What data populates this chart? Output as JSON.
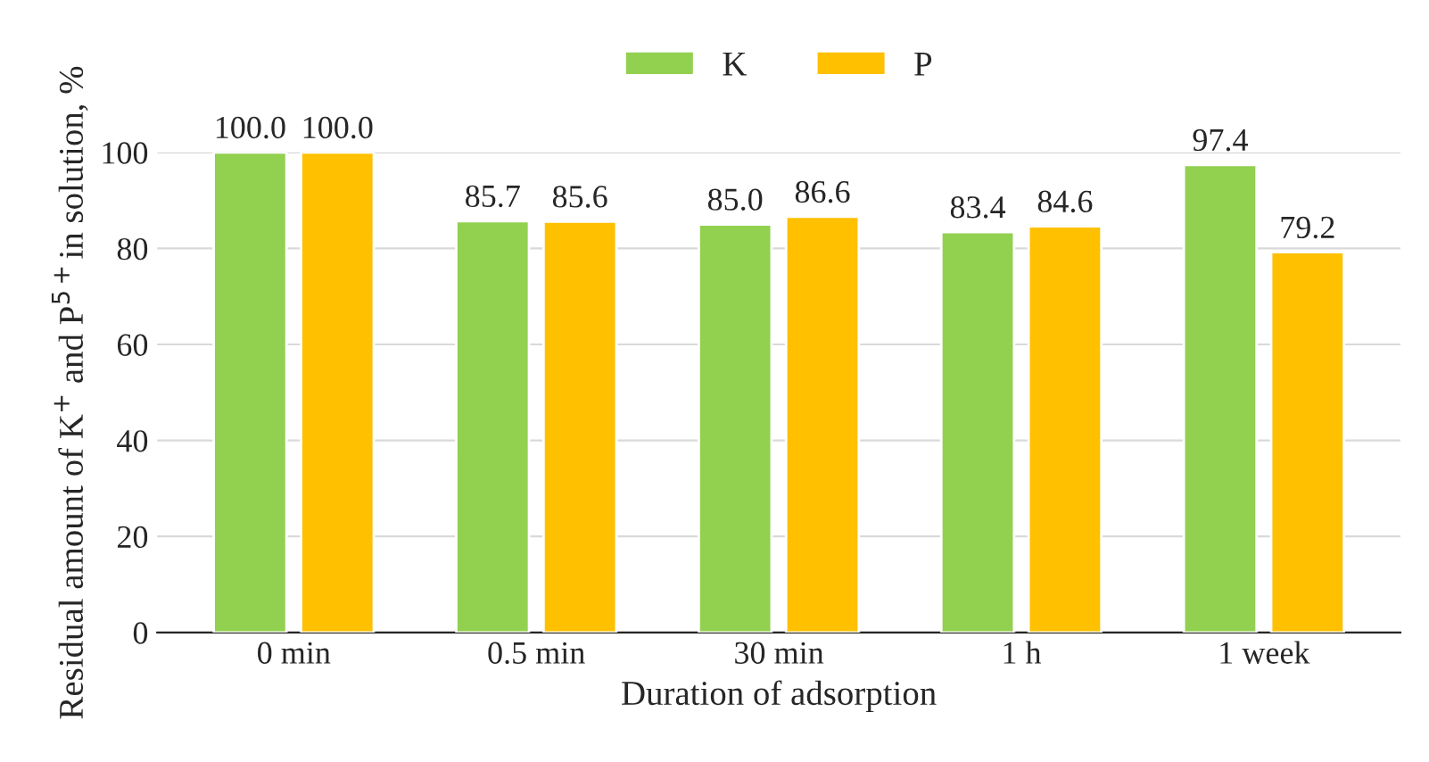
{
  "chart_data": {
    "type": "bar",
    "xlabel": "Duration of adsorption",
    "ylabel": "Residual amount of K$^{+}$ and P$^{5+}$in solution, %",
    "categories": [
      "0 min",
      "0.5 min",
      "30 min",
      "1 h",
      "1 week"
    ],
    "series": [
      {
        "name": "K",
        "color": "#92d050",
        "values": [
          100.0,
          85.7,
          85.0,
          83.4,
          97.4
        ],
        "value_labels": [
          "100.0",
          "85.7",
          "85.0",
          "83.4",
          "97.4"
        ]
      },
      {
        "name": "P",
        "color": "#ffc000",
        "values": [
          100.0,
          85.6,
          86.6,
          84.6,
          79.2
        ],
        "value_labels": [
          "100.0",
          "85.6",
          "86.6",
          "84.6",
          "79.2"
        ]
      }
    ],
    "ylim": [
      0,
      100
    ],
    "yticks": [
      0,
      20,
      40,
      60,
      80,
      100
    ],
    "grid": "y",
    "legend": "top"
  }
}
